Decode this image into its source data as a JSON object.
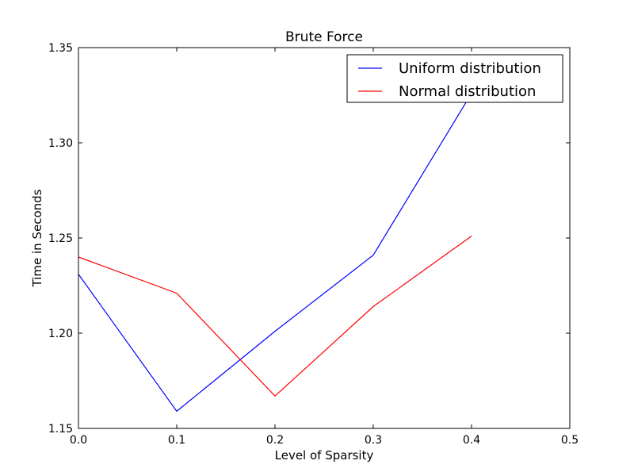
{
  "chart_data": {
    "type": "line",
    "title": "Brute Force",
    "xlabel": "Level of Sparsity",
    "ylabel": "Time in Seconds",
    "xlim": [
      0.0,
      0.5
    ],
    "ylim": [
      1.15,
      1.35
    ],
    "xticks": [
      "0.0",
      "0.1",
      "0.2",
      "0.3",
      "0.4",
      "0.5"
    ],
    "yticks": [
      "1.15",
      "1.20",
      "1.25",
      "1.30",
      "1.35"
    ],
    "grid": false,
    "legend_position": "top-right",
    "series": [
      {
        "name": "Uniform distribution",
        "color": "#0000ff",
        "x": [
          0.0,
          0.1,
          0.2,
          0.3,
          0.4
        ],
        "y": [
          1.231,
          1.159,
          1.201,
          1.241,
          1.326
        ]
      },
      {
        "name": "Normal distribution",
        "color": "#ff0000",
        "x": [
          0.0,
          0.1,
          0.2,
          0.3,
          0.4
        ],
        "y": [
          1.24,
          1.221,
          1.167,
          1.214,
          1.251
        ]
      }
    ]
  }
}
